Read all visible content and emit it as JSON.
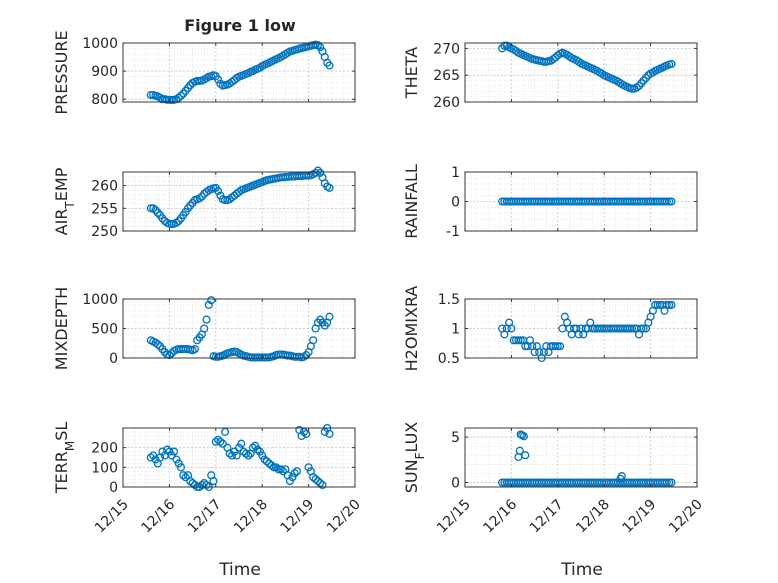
{
  "figure": {
    "title": "Figure 1 low",
    "xlabel": "Time",
    "x_ticklabels": [
      "12/15",
      "12/16",
      "12/17",
      "12/18",
      "12/19",
      "12/20"
    ],
    "marker_color": "#0072BD"
  },
  "chart_data": [
    {
      "type": "scatter",
      "ylabel": "PRESSURE",
      "ylim": [
        790,
        1000
      ],
      "yticks": [
        800,
        900,
        1000
      ],
      "xlim": [
        "12/15",
        "12/20"
      ],
      "grid": true,
      "x": [
        15.6,
        15.65,
        15.7,
        15.75,
        15.8,
        15.85,
        15.9,
        15.95,
        16.0,
        16.05,
        16.1,
        16.15,
        16.2,
        16.25,
        16.3,
        16.35,
        16.4,
        16.45,
        16.5,
        16.55,
        16.6,
        16.65,
        16.7,
        16.75,
        16.8,
        16.85,
        16.9,
        16.95,
        17.0,
        17.05,
        17.1,
        17.15,
        17.2,
        17.25,
        17.3,
        17.35,
        17.4,
        17.45,
        17.5,
        17.55,
        17.6,
        17.65,
        17.7,
        17.75,
        17.8,
        17.85,
        17.9,
        17.95,
        18.0,
        18.05,
        18.1,
        18.15,
        18.2,
        18.25,
        18.3,
        18.35,
        18.4,
        18.45,
        18.5,
        18.55,
        18.6,
        18.65,
        18.7,
        18.75,
        18.8,
        18.85,
        18.9,
        18.95,
        19.0,
        19.05,
        19.1,
        19.15,
        19.2,
        19.25,
        19.3,
        19.35,
        19.4,
        19.45
      ],
      "y": [
        815,
        815,
        812,
        810,
        805,
        800,
        800,
        798,
        798,
        797,
        798,
        800,
        805,
        812,
        820,
        830,
        840,
        850,
        858,
        862,
        865,
        865,
        866,
        870,
        875,
        880,
        882,
        885,
        882,
        870,
        855,
        848,
        850,
        852,
        856,
        862,
        868,
        875,
        880,
        883,
        886,
        890,
        893,
        897,
        900,
        905,
        908,
        912,
        918,
        922,
        926,
        930,
        934,
        938,
        942,
        946,
        950,
        955,
        960,
        965,
        970,
        972,
        975,
        977,
        980,
        982,
        984,
        986,
        988,
        990,
        992,
        994,
        992,
        985,
        970,
        950,
        930,
        920
      ]
    },
    {
      "type": "scatter",
      "ylabel": "THETA",
      "ylim": [
        260,
        271
      ],
      "yticks": [
        260,
        265,
        270
      ],
      "xlim": [
        "12/15",
        "12/20"
      ],
      "grid": true,
      "x": [
        15.8,
        15.85,
        15.9,
        15.95,
        16.0,
        16.05,
        16.1,
        16.15,
        16.2,
        16.25,
        16.3,
        16.35,
        16.4,
        16.45,
        16.5,
        16.55,
        16.6,
        16.65,
        16.7,
        16.75,
        16.8,
        16.85,
        16.9,
        16.95,
        17.0,
        17.05,
        17.1,
        17.15,
        17.2,
        17.25,
        17.3,
        17.35,
        17.4,
        17.45,
        17.5,
        17.55,
        17.6,
        17.65,
        17.7,
        17.75,
        17.8,
        17.85,
        17.9,
        17.95,
        18.0,
        18.05,
        18.1,
        18.15,
        18.2,
        18.25,
        18.3,
        18.35,
        18.4,
        18.45,
        18.5,
        18.55,
        18.6,
        18.65,
        18.7,
        18.75,
        18.8,
        18.85,
        18.9,
        18.95,
        19.0,
        19.05,
        19.1,
        19.15,
        19.2,
        19.25,
        19.3,
        19.35,
        19.4,
        19.45
      ],
      "y": [
        270,
        270.5,
        270.5,
        270.2,
        270,
        269.8,
        269.5,
        269.2,
        269,
        268.8,
        268.6,
        268.4,
        268.2,
        268,
        267.9,
        267.8,
        267.7,
        267.6,
        267.5,
        267.5,
        267.6,
        267.7,
        268,
        268.3,
        268.7,
        269,
        269.2,
        269,
        268.8,
        268.5,
        268.2,
        268,
        267.8,
        267.5,
        267.2,
        267,
        266.8,
        266.6,
        266.4,
        266.2,
        266,
        265.8,
        265.5,
        265.3,
        265,
        264.8,
        264.6,
        264.4,
        264.2,
        264,
        263.8,
        263.5,
        263.2,
        263,
        262.8,
        262.6,
        262.5,
        262.5,
        262.7,
        263,
        263.5,
        264,
        264.5,
        265,
        265.3,
        265.5,
        265.8,
        266,
        266.2,
        266.4,
        266.6,
        266.8,
        267,
        267.1
      ]
    },
    {
      "type": "scatter",
      "ylabel": "AIR_TEMP",
      "ylim": [
        250,
        263
      ],
      "yticks": [
        250,
        255,
        260
      ],
      "xlim": [
        "12/15",
        "12/20"
      ],
      "grid": true,
      "x": [
        15.6,
        15.65,
        15.7,
        15.75,
        15.8,
        15.85,
        15.9,
        15.95,
        16.0,
        16.05,
        16.1,
        16.15,
        16.2,
        16.25,
        16.3,
        16.35,
        16.4,
        16.45,
        16.5,
        16.55,
        16.6,
        16.65,
        16.7,
        16.75,
        16.8,
        16.85,
        16.9,
        16.95,
        17.0,
        17.05,
        17.1,
        17.15,
        17.2,
        17.25,
        17.3,
        17.35,
        17.4,
        17.45,
        17.5,
        17.55,
        17.6,
        17.65,
        17.7,
        17.75,
        17.8,
        17.85,
        17.9,
        17.95,
        18.0,
        18.05,
        18.1,
        18.15,
        18.2,
        18.25,
        18.3,
        18.35,
        18.4,
        18.45,
        18.5,
        18.55,
        18.6,
        18.65,
        18.7,
        18.75,
        18.8,
        18.85,
        18.9,
        18.95,
        19.0,
        19.05,
        19.1,
        19.15,
        19.2,
        19.25,
        19.3,
        19.35,
        19.4,
        19.45
      ],
      "y": [
        255,
        255,
        254.6,
        254,
        253.5,
        252.8,
        252.2,
        251.8,
        251.6,
        251.5,
        251.6,
        251.8,
        252.2,
        252.8,
        253.5,
        254.2,
        255,
        255.6,
        256.2,
        256.8,
        257,
        257.2,
        257.6,
        258.2,
        258.6,
        259,
        259.2,
        259.4,
        259.5,
        258.8,
        257.8,
        257,
        256.8,
        256.8,
        257,
        257.4,
        257.8,
        258.2,
        258.6,
        259,
        259.2,
        259.4,
        259.6,
        259.8,
        260,
        260.2,
        260.4,
        260.6,
        260.8,
        261,
        261.2,
        261.3,
        261.4,
        261.5,
        261.6,
        261.7,
        261.8,
        261.8,
        261.9,
        261.9,
        262,
        262,
        262,
        262.1,
        262.1,
        262.1,
        262.2,
        262.2,
        262.2,
        262.3,
        262.5,
        262.8,
        263.3,
        262.8,
        261.8,
        260.5,
        259.8,
        259.5
      ]
    },
    {
      "type": "scatter",
      "ylabel": "RAINFALL",
      "ylim": [
        -1,
        1
      ],
      "yticks": [
        -1,
        0,
        1
      ],
      "xlim": [
        "12/15",
        "12/20"
      ],
      "grid": true,
      "x": [
        15.8,
        15.85,
        15.9,
        15.95,
        16.0,
        16.05,
        16.1,
        16.15,
        16.2,
        16.25,
        16.3,
        16.35,
        16.4,
        16.45,
        16.5,
        16.55,
        16.6,
        16.65,
        16.7,
        16.75,
        16.8,
        16.85,
        16.9,
        16.95,
        17.0,
        17.05,
        17.1,
        17.15,
        17.2,
        17.25,
        17.3,
        17.35,
        17.4,
        17.45,
        17.5,
        17.55,
        17.6,
        17.65,
        17.7,
        17.75,
        17.8,
        17.85,
        17.9,
        17.95,
        18.0,
        18.05,
        18.1,
        18.15,
        18.2,
        18.25,
        18.3,
        18.35,
        18.4,
        18.45,
        18.5,
        18.55,
        18.6,
        18.65,
        18.7,
        18.75,
        18.8,
        18.85,
        18.9,
        18.95,
        19.0,
        19.05,
        19.1,
        19.15,
        19.2,
        19.25,
        19.3,
        19.35,
        19.4,
        19.45
      ],
      "y": [
        0,
        0,
        0,
        0,
        0,
        0,
        0,
        0,
        0,
        0,
        0,
        0,
        0,
        0,
        0,
        0,
        0,
        0,
        0,
        0,
        0,
        0,
        0,
        0,
        0,
        0,
        0,
        0,
        0,
        0,
        0,
        0,
        0,
        0,
        0,
        0,
        0,
        0,
        0,
        0,
        0,
        0,
        0,
        0,
        0,
        0,
        0,
        0,
        0,
        0,
        0,
        0,
        0,
        0,
        0,
        0,
        0,
        0,
        0,
        0,
        0,
        0,
        0,
        0,
        0,
        0,
        0,
        0,
        0,
        0,
        0,
        0,
        0,
        0
      ]
    },
    {
      "type": "scatter",
      "ylabel": "MIXDEPTH",
      "ylim": [
        0,
        1000
      ],
      "yticks": [
        0,
        500,
        1000
      ],
      "xlim": [
        "12/15",
        "12/20"
      ],
      "grid": true,
      "x": [
        15.6,
        15.65,
        15.7,
        15.75,
        15.8,
        15.85,
        15.9,
        15.95,
        16.0,
        16.05,
        16.1,
        16.15,
        16.2,
        16.25,
        16.3,
        16.35,
        16.4,
        16.45,
        16.5,
        16.55,
        16.6,
        16.65,
        16.7,
        16.75,
        16.8,
        16.85,
        16.9,
        16.95,
        17.0,
        17.05,
        17.1,
        17.15,
        17.2,
        17.25,
        17.3,
        17.35,
        17.4,
        17.45,
        17.5,
        17.55,
        17.6,
        17.65,
        17.7,
        17.75,
        17.8,
        17.85,
        17.9,
        17.95,
        18.0,
        18.05,
        18.1,
        18.15,
        18.2,
        18.25,
        18.3,
        18.35,
        18.4,
        18.45,
        18.5,
        18.55,
        18.6,
        18.65,
        18.7,
        18.75,
        18.8,
        18.85,
        18.9,
        18.95,
        19.0,
        19.05,
        19.1,
        19.15,
        19.2,
        19.25,
        19.3,
        19.35,
        19.4,
        19.45
      ],
      "y": [
        300,
        280,
        260,
        230,
        200,
        150,
        100,
        60,
        50,
        80,
        120,
        140,
        150,
        150,
        150,
        150,
        150,
        140,
        130,
        150,
        300,
        350,
        400,
        500,
        650,
        900,
        980,
        30,
        20,
        20,
        30,
        40,
        60,
        80,
        90,
        100,
        110,
        100,
        80,
        60,
        40,
        30,
        20,
        10,
        10,
        10,
        10,
        10,
        10,
        10,
        10,
        10,
        20,
        30,
        50,
        60,
        60,
        60,
        50,
        40,
        40,
        30,
        20,
        20,
        20,
        10,
        20,
        50,
        100,
        200,
        300,
        500,
        600,
        650,
        600,
        550,
        600,
        700
      ]
    },
    {
      "type": "scatter",
      "ylabel": "H2OMIXRA",
      "ylim": [
        0.5,
        1.5
      ],
      "yticks": [
        0.5,
        1,
        1.5
      ],
      "xlim": [
        "12/15",
        "12/20"
      ],
      "grid": true,
      "x": [
        15.8,
        15.85,
        15.9,
        15.95,
        16.0,
        16.05,
        16.1,
        16.15,
        16.2,
        16.25,
        16.3,
        16.35,
        16.4,
        16.45,
        16.5,
        16.55,
        16.6,
        16.65,
        16.7,
        16.75,
        16.8,
        16.85,
        16.9,
        16.95,
        17.0,
        17.05,
        17.1,
        17.15,
        17.2,
        17.25,
        17.3,
        17.35,
        17.4,
        17.45,
        17.5,
        17.55,
        17.6,
        17.65,
        17.7,
        17.75,
        17.8,
        17.85,
        17.9,
        17.95,
        18.0,
        18.05,
        18.1,
        18.15,
        18.2,
        18.25,
        18.3,
        18.35,
        18.4,
        18.45,
        18.5,
        18.55,
        18.6,
        18.65,
        18.7,
        18.75,
        18.8,
        18.85,
        18.9,
        18.95,
        19.0,
        19.05,
        19.1,
        19.15,
        19.2,
        19.25,
        19.3,
        19.35,
        19.4,
        19.45
      ],
      "y": [
        1,
        0.9,
        1,
        1.1,
        1,
        0.8,
        0.8,
        0.8,
        0.8,
        0.8,
        0.7,
        0.7,
        0.8,
        0.7,
        0.6,
        0.7,
        0.6,
        0.5,
        0.6,
        0.7,
        0.6,
        0.7,
        0.7,
        0.7,
        0.7,
        0.7,
        1,
        1.2,
        1.1,
        1,
        0.9,
        1,
        1,
        0.9,
        1,
        0.9,
        1,
        1,
        1.1,
        1,
        1,
        1,
        1,
        1,
        1,
        1,
        1,
        1,
        1,
        1,
        1,
        1,
        1,
        1,
        1,
        1,
        1,
        1,
        1,
        0.9,
        1,
        1,
        1,
        1.1,
        1.2,
        1.3,
        1.4,
        1.4,
        1.4,
        1.4,
        1.3,
        1.4,
        1.4,
        1.4
      ]
    },
    {
      "type": "scatter",
      "ylabel": "TERR_MSL",
      "ylim": [
        0,
        300
      ],
      "yticks": [
        0,
        100,
        200
      ],
      "xlim": [
        "12/15",
        "12/20"
      ],
      "grid": true,
      "x": [
        15.6,
        15.65,
        15.7,
        15.75,
        15.8,
        15.85,
        15.9,
        15.95,
        16.0,
        16.05,
        16.1,
        16.15,
        16.2,
        16.25,
        16.3,
        16.35,
        16.4,
        16.45,
        16.5,
        16.55,
        16.6,
        16.65,
        16.7,
        16.75,
        16.8,
        16.85,
        16.9,
        16.95,
        17.0,
        17.05,
        17.1,
        17.15,
        17.2,
        17.25,
        17.3,
        17.35,
        17.4,
        17.45,
        17.5,
        17.55,
        17.6,
        17.65,
        17.7,
        17.75,
        17.8,
        17.85,
        17.9,
        17.95,
        18.0,
        18.05,
        18.1,
        18.15,
        18.2,
        18.25,
        18.3,
        18.35,
        18.4,
        18.45,
        18.5,
        18.55,
        18.6,
        18.65,
        18.7,
        18.75,
        18.8,
        18.85,
        18.9,
        18.95,
        19.0,
        19.05,
        19.1,
        19.15,
        19.2,
        19.25,
        19.3,
        19.35,
        19.4,
        19.45
      ],
      "y": [
        150,
        160,
        140,
        120,
        150,
        180,
        160,
        190,
        180,
        160,
        180,
        140,
        120,
        100,
        60,
        50,
        60,
        30,
        20,
        10,
        0,
        0,
        10,
        20,
        10,
        0,
        60,
        30,
        230,
        240,
        230,
        220,
        280,
        200,
        170,
        160,
        180,
        160,
        200,
        220,
        180,
        170,
        160,
        170,
        200,
        210,
        190,
        180,
        160,
        140,
        130,
        120,
        110,
        100,
        100,
        90,
        90,
        80,
        90,
        60,
        30,
        50,
        70,
        80,
        290,
        260,
        280,
        270,
        100,
        80,
        50,
        40,
        30,
        20,
        10,
        280,
        300,
        270
      ]
    },
    {
      "type": "scatter",
      "ylabel": "SUN_FLUX",
      "ylim": [
        -0.5,
        6
      ],
      "yticks": [
        0,
        5
      ],
      "xlim": [
        "12/15",
        "12/20"
      ],
      "grid": true,
      "x": [
        15.8,
        15.85,
        15.9,
        15.95,
        16.0,
        16.05,
        16.1,
        16.15,
        16.2,
        16.25,
        16.3,
        16.35,
        16.4,
        16.45,
        16.5,
        16.55,
        16.6,
        16.65,
        16.7,
        16.75,
        16.8,
        16.85,
        16.9,
        16.95,
        17.0,
        17.05,
        17.1,
        17.15,
        17.2,
        17.25,
        17.3,
        17.35,
        17.4,
        17.45,
        17.5,
        17.55,
        17.6,
        17.65,
        17.7,
        17.75,
        17.8,
        17.85,
        17.9,
        17.95,
        18.0,
        18.05,
        18.1,
        18.15,
        18.2,
        18.25,
        18.3,
        18.35,
        18.4,
        18.45,
        18.5,
        18.55,
        18.6,
        18.65,
        18.7,
        18.75,
        18.8,
        18.85,
        18.9,
        18.95,
        19.0,
        19.05,
        19.1,
        19.15,
        19.2,
        19.25,
        19.3,
        19.35,
        19.4,
        19.45,
        16.15,
        16.18,
        16.2,
        16.23,
        16.27,
        16.3,
        18.35,
        18.38
      ],
      "y": [
        0,
        0,
        0,
        0,
        0,
        0,
        0,
        0,
        0,
        0,
        0,
        0,
        0,
        0,
        0,
        0,
        0,
        0,
        0,
        0,
        0,
        0,
        0,
        0,
        0,
        0,
        0,
        0,
        0,
        0,
        0,
        0,
        0,
        0,
        0,
        0,
        0,
        0,
        0,
        0,
        0,
        0,
        0,
        0,
        0,
        0,
        0,
        0,
        0,
        0,
        0,
        0,
        0,
        0,
        0,
        0,
        0,
        0,
        0,
        0,
        0,
        0,
        0,
        0,
        0,
        0,
        0,
        0,
        0,
        0,
        0,
        0,
        0,
        0,
        2.8,
        3.5,
        5.3,
        5.2,
        5.1,
        3,
        0.4,
        0.7
      ]
    }
  ]
}
